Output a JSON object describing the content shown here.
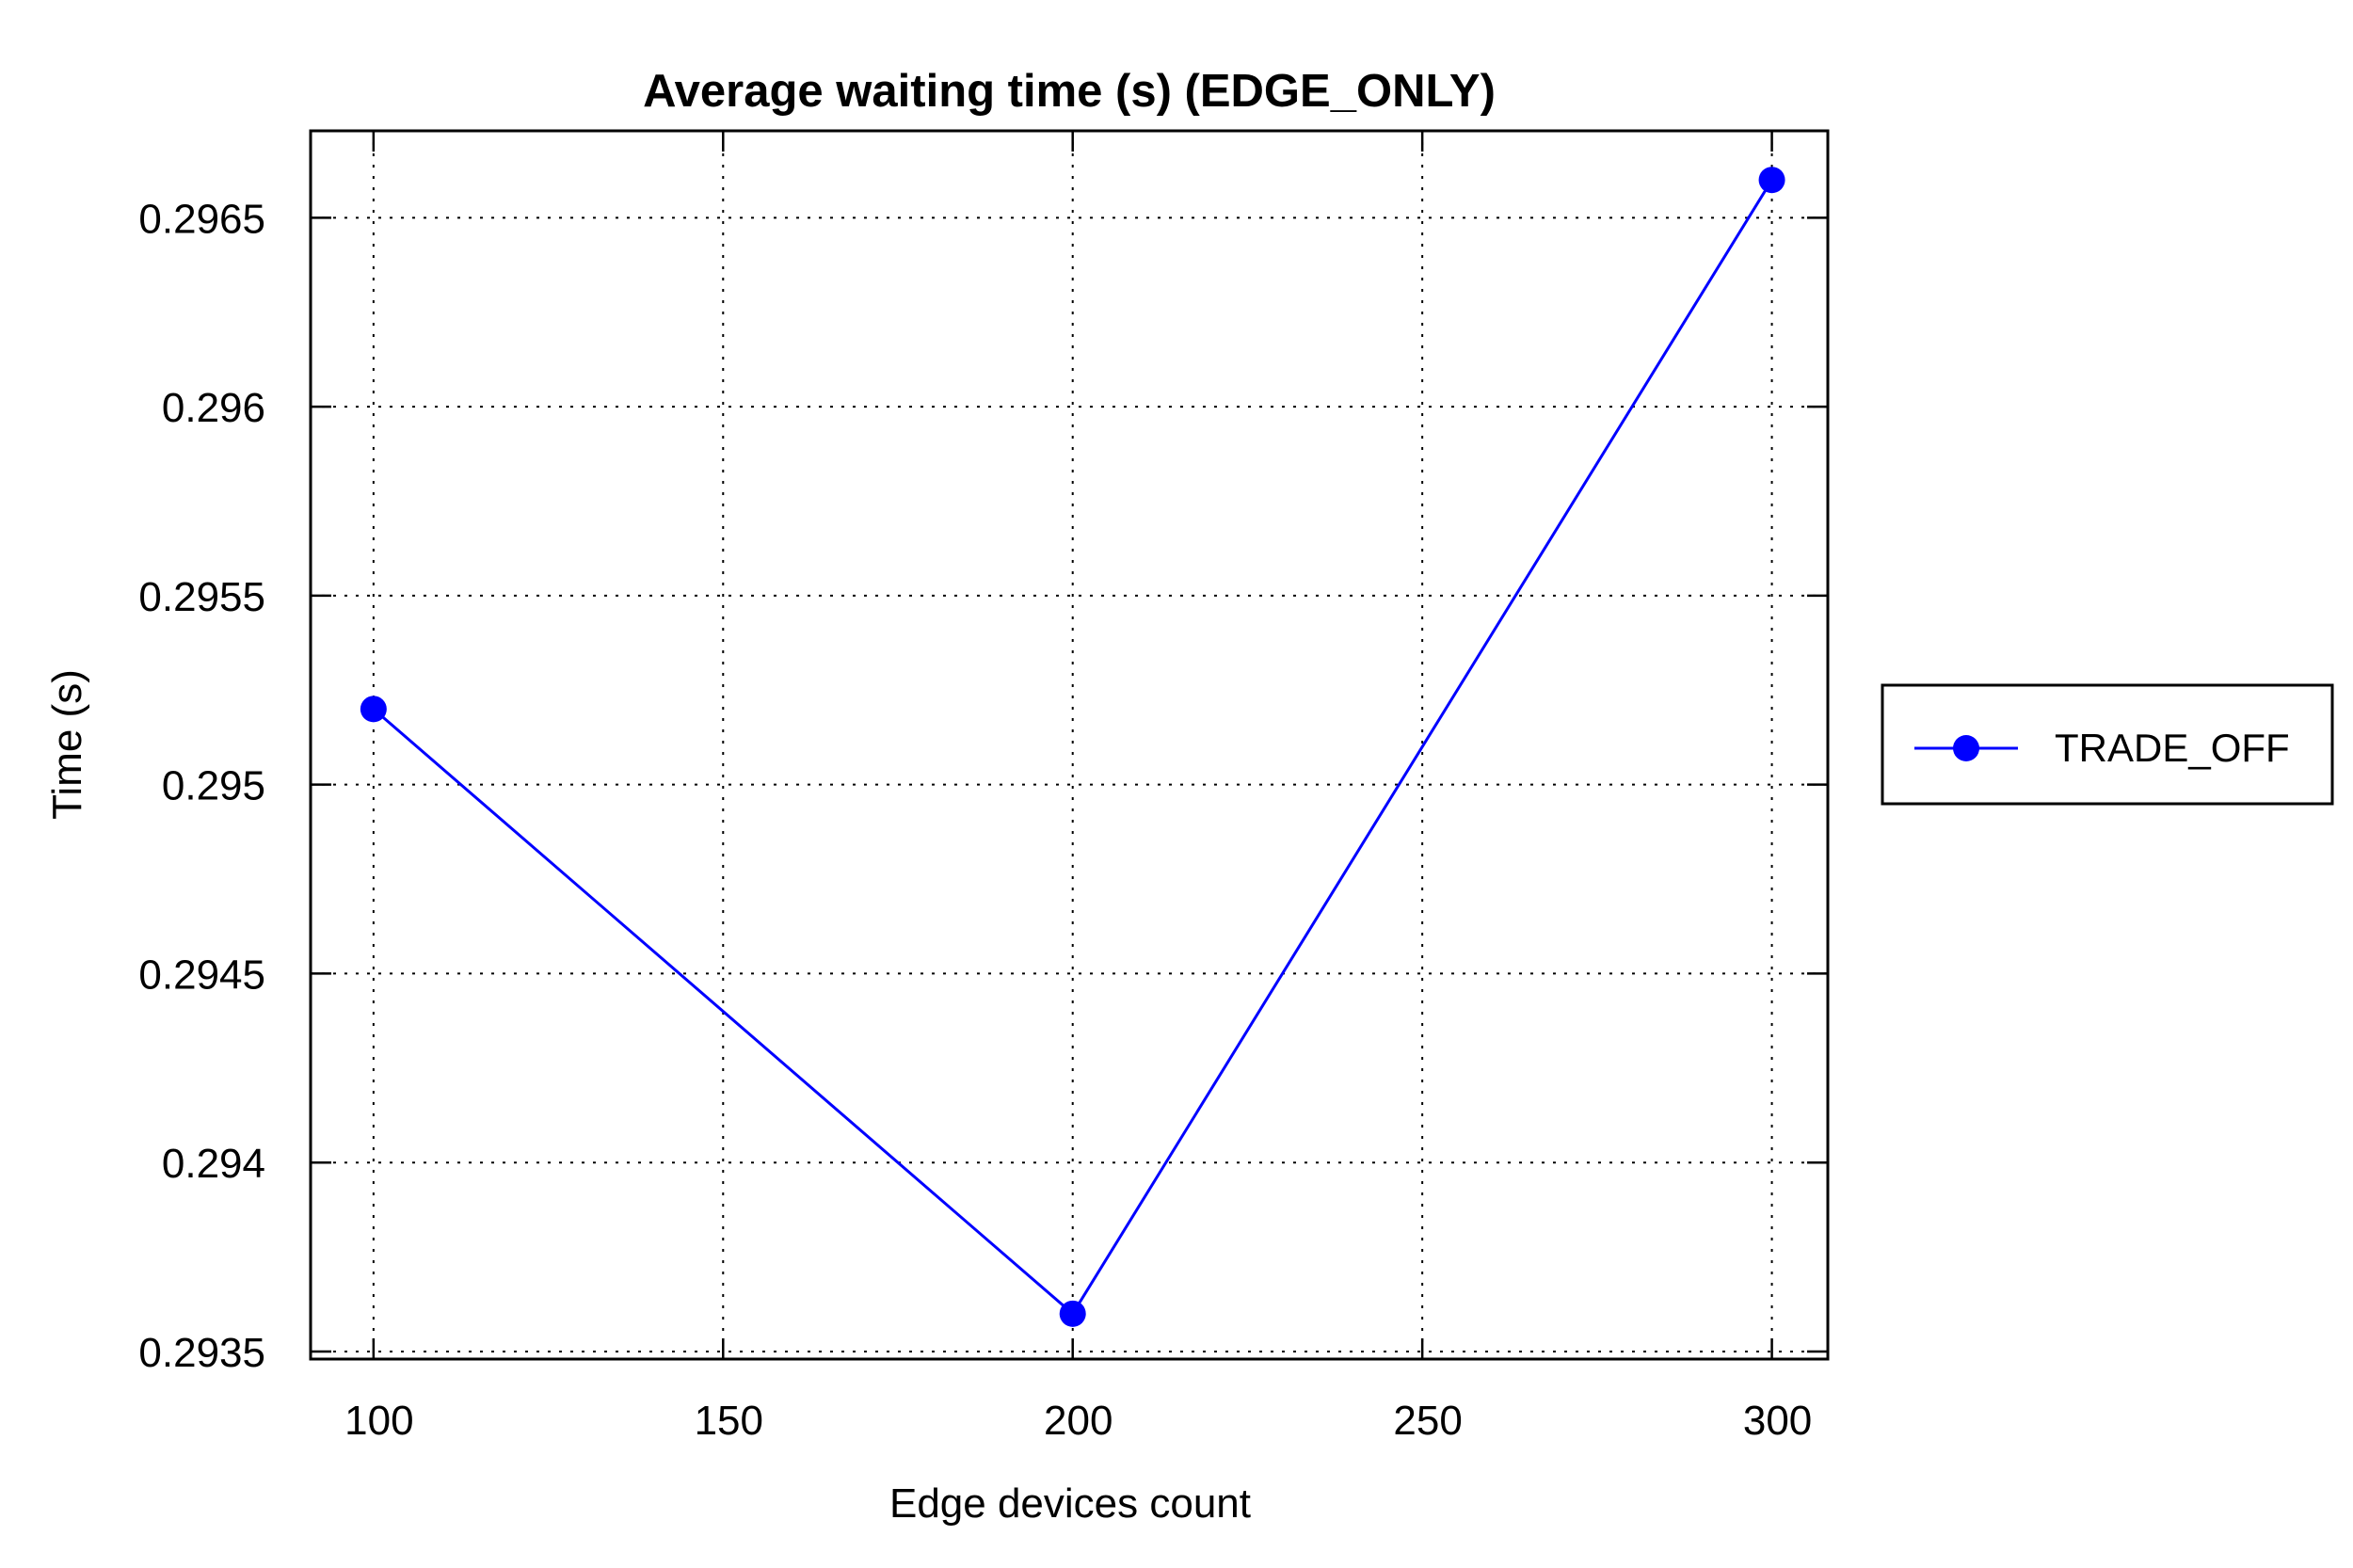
{
  "chart_data": {
    "type": "line",
    "title": "Average waiting time (s) (EDGE_ONLY)",
    "xlabel": "Edge devices count",
    "ylabel": "Time (s)",
    "x": [
      100,
      200,
      300
    ],
    "x_ticks": [
      100,
      150,
      200,
      250,
      300
    ],
    "x_tick_labels": [
      "100",
      "150",
      "200",
      "250",
      "300"
    ],
    "xlim": [
      91,
      308
    ],
    "y_ticks": [
      0.2935,
      0.294,
      0.2945,
      0.295,
      0.2955,
      0.296,
      0.2965
    ],
    "y_tick_labels": [
      "0.2935",
      "0.294",
      "0.2945",
      "0.295",
      "0.2955",
      "0.296",
      "0.2965"
    ],
    "ylim": [
      0.29348,
      0.29673
    ],
    "grid": true,
    "legend_position": "outside-right",
    "series": [
      {
        "name": "TRADE_OFF",
        "color": "#0000ff",
        "marker": "circle",
        "values": [
          0.2952,
          0.2936,
          0.2966
        ]
      }
    ]
  }
}
